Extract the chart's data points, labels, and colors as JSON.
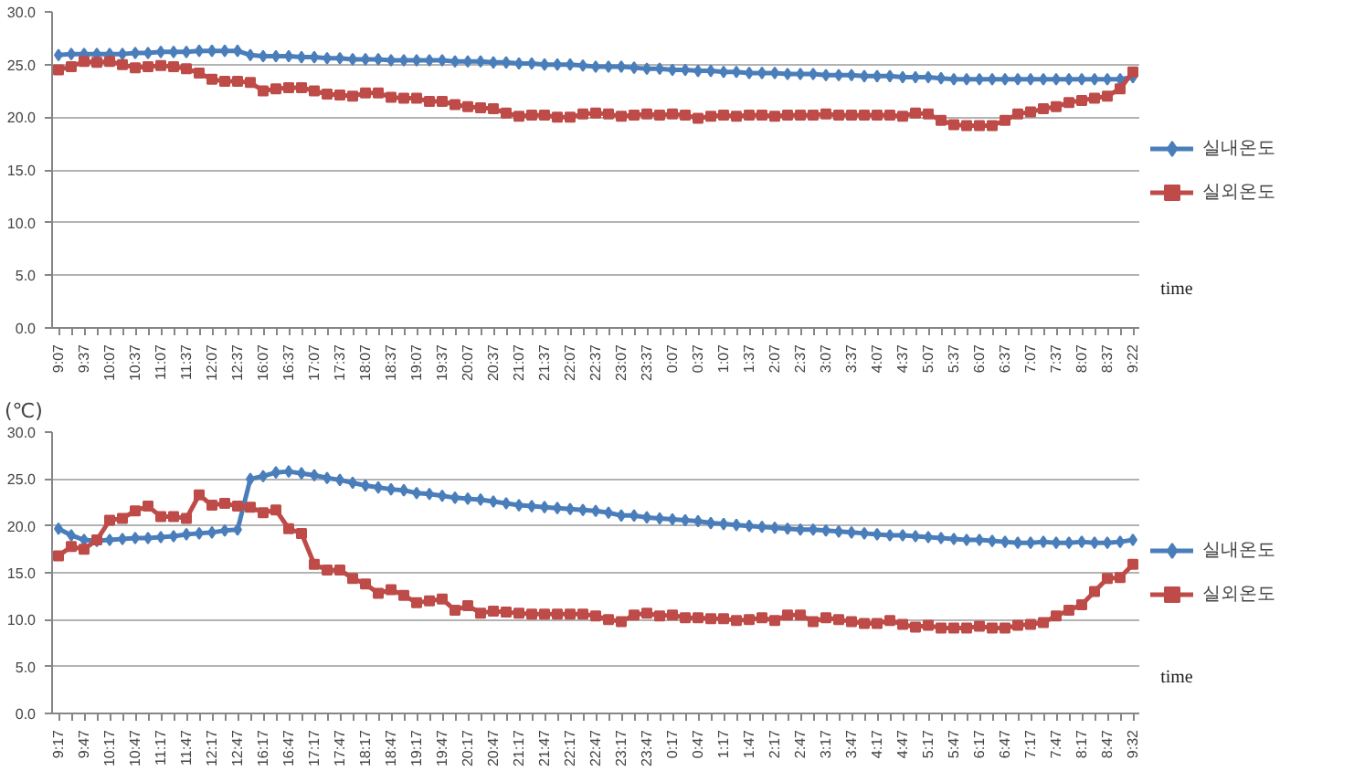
{
  "chart_data": [
    {
      "type": "line",
      "xlabel": "time",
      "categories": [
        "9:07",
        null,
        "9:37",
        null,
        "10:07",
        null,
        "10:37",
        null,
        "11:07",
        null,
        "11:37",
        null,
        "12:07",
        null,
        "12:37",
        null,
        "16:07",
        null,
        "16:37",
        null,
        "17:07",
        null,
        "17:37",
        null,
        "18:07",
        null,
        "18:37",
        null,
        "19:07",
        null,
        "19:37",
        null,
        "20:07",
        null,
        "20:37",
        null,
        "21:07",
        null,
        "21:37",
        null,
        "22:07",
        null,
        "22:37",
        null,
        "23:07",
        null,
        "23:37",
        null,
        "0:07",
        null,
        "0:37",
        null,
        "1:07",
        null,
        "1:37",
        null,
        "2:07",
        null,
        "2:37",
        null,
        "3:07",
        null,
        "3:37",
        null,
        "4:07",
        null,
        "4:37",
        null,
        "5:07",
        null,
        "5:37",
        null,
        "6:07",
        null,
        "6:37",
        null,
        "7:07",
        null,
        "7:37",
        null,
        "8:07",
        null,
        "8:37",
        null,
        "9:22"
      ],
      "series": [
        {
          "name": "실내온도",
          "color": "#4a7ebb",
          "marker": "diamond",
          "values": [
            25.9,
            26.0,
            26.0,
            26.0,
            26.0,
            26.0,
            26.1,
            26.1,
            26.2,
            26.2,
            26.2,
            26.3,
            26.3,
            26.3,
            26.3,
            25.9,
            25.8,
            25.8,
            25.8,
            25.7,
            25.7,
            25.6,
            25.6,
            25.5,
            25.5,
            25.5,
            25.4,
            25.4,
            25.4,
            25.4,
            25.4,
            25.3,
            25.3,
            25.3,
            25.2,
            25.2,
            25.1,
            25.1,
            25.0,
            25.0,
            25.0,
            24.9,
            24.8,
            24.8,
            24.8,
            24.7,
            24.6,
            24.6,
            24.5,
            24.5,
            24.4,
            24.4,
            24.3,
            24.3,
            24.2,
            24.2,
            24.2,
            24.1,
            24.1,
            24.1,
            24.0,
            24.0,
            24.0,
            23.9,
            23.9,
            23.9,
            23.8,
            23.8,
            23.8,
            23.7,
            23.6,
            23.6,
            23.6,
            23.6,
            23.6,
            23.6,
            23.6,
            23.6,
            23.6,
            23.6,
            23.6,
            23.6,
            23.6,
            23.6,
            23.8
          ]
        },
        {
          "name": "실외온도",
          "color": "#be4b48",
          "marker": "square",
          "values": [
            24.5,
            24.8,
            25.3,
            25.2,
            25.3,
            25.0,
            24.7,
            24.8,
            24.9,
            24.8,
            24.6,
            24.2,
            23.6,
            23.4,
            23.4,
            23.3,
            22.5,
            22.7,
            22.8,
            22.8,
            22.5,
            22.2,
            22.1,
            22.0,
            22.3,
            22.3,
            21.9,
            21.8,
            21.8,
            21.5,
            21.5,
            21.2,
            21.0,
            20.9,
            20.8,
            20.4,
            20.1,
            20.2,
            20.2,
            20.0,
            20.0,
            20.3,
            20.4,
            20.3,
            20.1,
            20.2,
            20.3,
            20.2,
            20.3,
            20.2,
            19.9,
            20.1,
            20.2,
            20.1,
            20.2,
            20.2,
            20.1,
            20.2,
            20.2,
            20.2,
            20.3,
            20.2,
            20.2,
            20.2,
            20.2,
            20.2,
            20.1,
            20.4,
            20.3,
            19.7,
            19.3,
            19.2,
            19.2,
            19.2,
            19.7,
            20.3,
            20.5,
            20.8,
            21.0,
            21.4,
            21.6,
            21.8,
            22.0,
            22.7,
            24.3
          ]
        }
      ],
      "ylim": [
        0,
        30
      ],
      "yticks": [
        {
          "value": 0,
          "label": "0.0"
        },
        {
          "value": 5,
          "label": "5.0"
        },
        {
          "value": 10,
          "label": "10.0"
        },
        {
          "value": 15,
          "label": "15.0"
        },
        {
          "value": 20,
          "label": "20.0"
        },
        {
          "value": 25,
          "label": "25.0"
        },
        {
          "value": 30,
          "label": "30.0"
        }
      ],
      "grid": "y",
      "legend": "right",
      "line_style": "solid"
    },
    {
      "type": "line",
      "xlabel": "time",
      "ylabel": "(℃)",
      "categories": [
        "9:17",
        null,
        "9:47",
        null,
        "10:17",
        null,
        "10:47",
        null,
        "11:17",
        null,
        "11:47",
        null,
        "12:17",
        null,
        "12:47",
        null,
        "16:17",
        null,
        "16:47",
        null,
        "17:17",
        null,
        "17:47",
        null,
        "18:17",
        null,
        "18:47",
        null,
        "19:17",
        null,
        "19:47",
        null,
        "20:17",
        null,
        "20:47",
        null,
        "21:17",
        null,
        "21:47",
        null,
        "22:17",
        null,
        "22:47",
        null,
        "23:17",
        null,
        "23:47",
        null,
        "0:17",
        null,
        "0:47",
        null,
        "1:17",
        null,
        "1:47",
        null,
        "2:17",
        null,
        "2:47",
        null,
        "3:17",
        null,
        "3:47",
        null,
        "4:17",
        null,
        "4:47",
        null,
        "5:17",
        null,
        "5:47",
        null,
        "6:17",
        null,
        "6:47",
        null,
        "7:17",
        null,
        "7:47",
        null,
        "8:17",
        null,
        "8:47",
        null,
        "9:32"
      ],
      "series": [
        {
          "name": "실내온도",
          "color": "#4a7ebb",
          "marker": "diamond",
          "values": [
            19.7,
            19.0,
            18.5,
            18.4,
            18.5,
            18.6,
            18.7,
            18.7,
            18.8,
            18.9,
            19.1,
            19.2,
            19.3,
            19.5,
            19.6,
            25.0,
            25.3,
            25.7,
            25.8,
            25.6,
            25.4,
            25.1,
            24.9,
            24.6,
            24.3,
            24.1,
            23.9,
            23.8,
            23.5,
            23.4,
            23.2,
            23.0,
            22.9,
            22.8,
            22.6,
            22.4,
            22.2,
            22.1,
            22.0,
            21.9,
            21.8,
            21.7,
            21.6,
            21.4,
            21.1,
            21.1,
            20.9,
            20.8,
            20.7,
            20.6,
            20.5,
            20.3,
            20.2,
            20.1,
            20.0,
            19.9,
            19.8,
            19.7,
            19.6,
            19.6,
            19.5,
            19.4,
            19.3,
            19.2,
            19.1,
            19.0,
            19.0,
            18.9,
            18.8,
            18.7,
            18.6,
            18.5,
            18.5,
            18.4,
            18.3,
            18.2,
            18.2,
            18.3,
            18.2,
            18.2,
            18.3,
            18.2,
            18.2,
            18.3,
            18.5
          ]
        },
        {
          "name": "실외온도",
          "color": "#be4b48",
          "marker": "square",
          "values": [
            16.8,
            17.8,
            17.5,
            18.5,
            20.6,
            20.8,
            21.6,
            22.1,
            21.0,
            21.0,
            20.8,
            23.3,
            22.2,
            22.4,
            22.1,
            22.0,
            21.4,
            21.7,
            19.7,
            19.2,
            15.9,
            15.3,
            15.3,
            14.4,
            13.8,
            12.8,
            13.2,
            12.6,
            11.8,
            12.0,
            12.2,
            11.0,
            11.5,
            10.7,
            10.9,
            10.8,
            10.7,
            10.6,
            10.6,
            10.6,
            10.6,
            10.6,
            10.4,
            10.0,
            9.8,
            10.5,
            10.7,
            10.4,
            10.5,
            10.2,
            10.2,
            10.1,
            10.1,
            9.9,
            10.0,
            10.2,
            9.9,
            10.5,
            10.5,
            9.8,
            10.2,
            10.0,
            9.8,
            9.6,
            9.6,
            9.9,
            9.5,
            9.2,
            9.4,
            9.1,
            9.1,
            9.1,
            9.3,
            9.1,
            9.1,
            9.4,
            9.5,
            9.7,
            10.4,
            11.0,
            11.6,
            13.0,
            14.4,
            14.5,
            15.9
          ]
        }
      ],
      "ylim": [
        0,
        30
      ],
      "yticks": [
        {
          "value": 0,
          "label": "0.0"
        },
        {
          "value": 5,
          "label": "5.0"
        },
        {
          "value": 10,
          "label": "10.0"
        },
        {
          "value": 15,
          "label": "15.0"
        },
        {
          "value": 20,
          "label": "20.0"
        },
        {
          "value": 25,
          "label": "25.0"
        },
        {
          "value": 30,
          "label": "30.0"
        }
      ],
      "grid": "y",
      "legend": "right",
      "line_style": "solid"
    }
  ]
}
